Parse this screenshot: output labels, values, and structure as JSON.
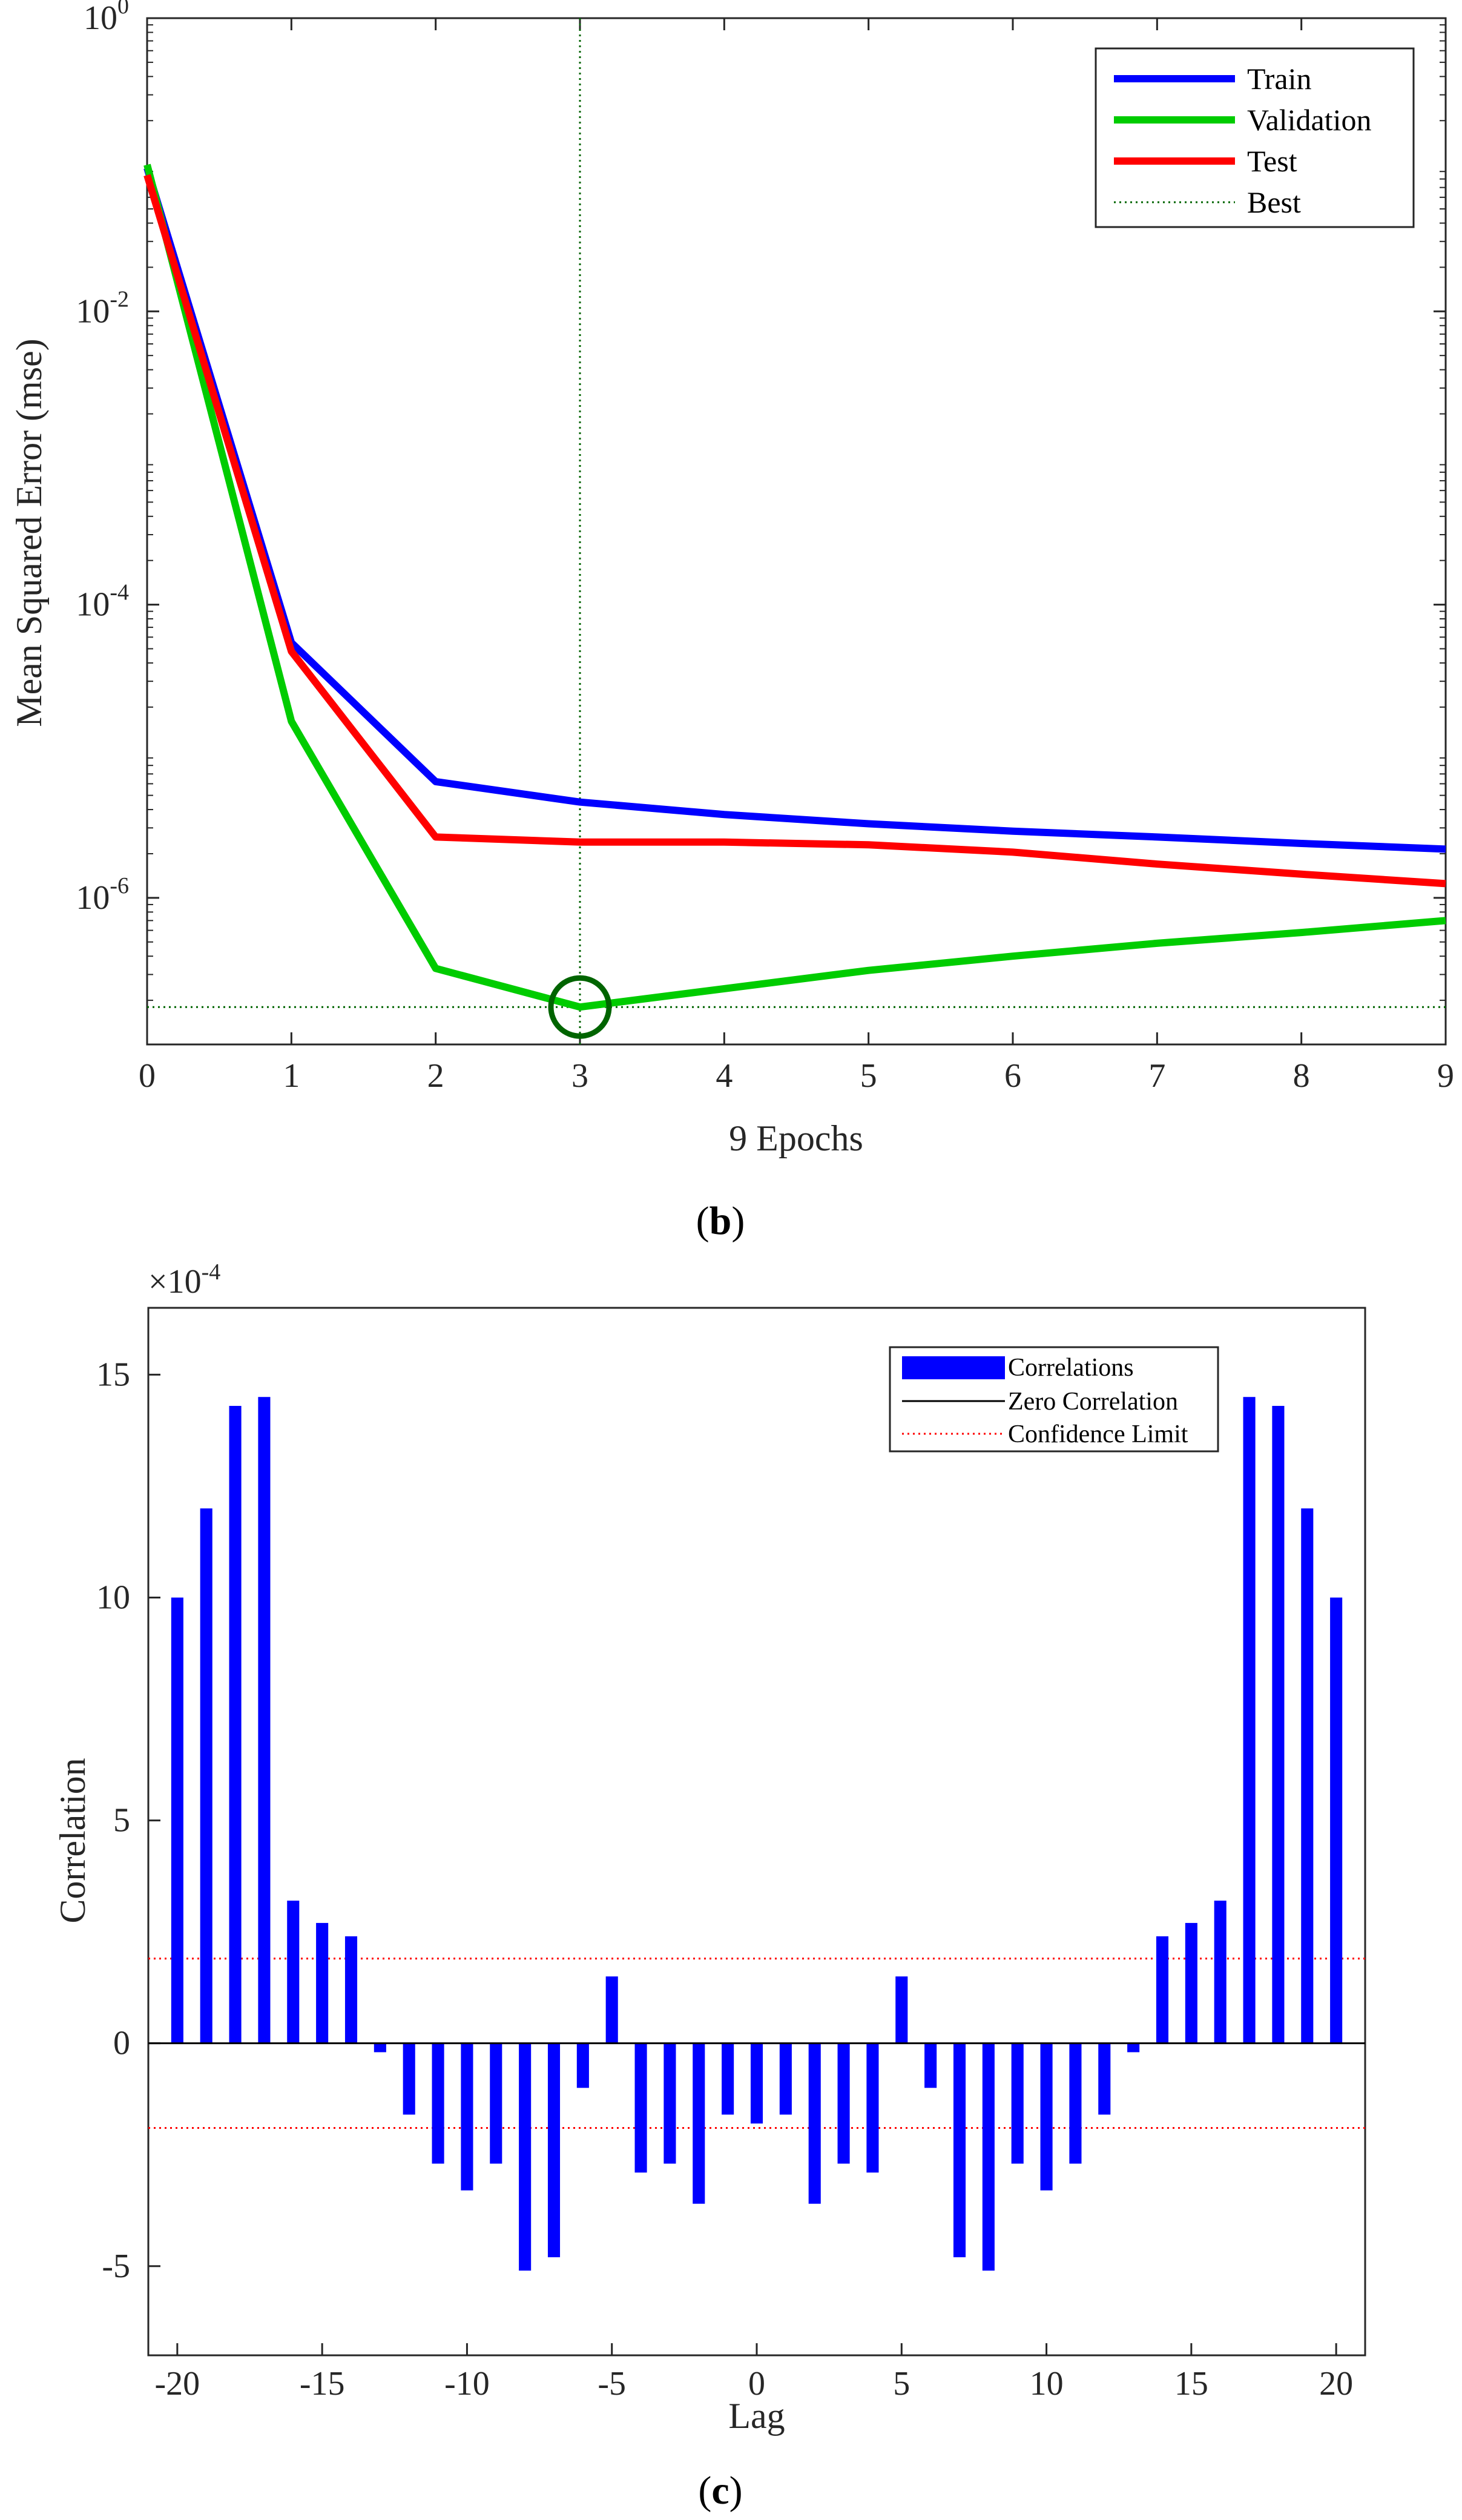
{
  "chart_data": [
    {
      "type": "line",
      "panel_label": "b",
      "yscale": "log",
      "xlabel": "9 Epochs",
      "ylabel": "Mean Squared Error  (mse)",
      "xlim": [
        0,
        9
      ],
      "ylim": [
        1e-07,
        1
      ],
      "x_ticks": [
        "0",
        "1",
        "2",
        "3",
        "4",
        "5",
        "6",
        "7",
        "8",
        "9"
      ],
      "y_ticks": [
        {
          "value": 1,
          "base": "10",
          "exp": "0"
        },
        {
          "value": 0.01,
          "base": "10",
          "exp": "-2"
        },
        {
          "value": 0.0001,
          "base": "10",
          "exp": "-4"
        },
        {
          "value": 1e-06,
          "base": "10",
          "exp": "-6"
        }
      ],
      "x": [
        0,
        1,
        2,
        3,
        4,
        5,
        6,
        7,
        8,
        9
      ],
      "series": [
        {
          "name": "Train",
          "color": "#0000ff",
          "values": [
            0.095,
            5.5e-05,
            6.2e-06,
            4.5e-06,
            3.7e-06,
            3.2e-06,
            2.85e-06,
            2.6e-06,
            2.35e-06,
            2.15e-06
          ]
        },
        {
          "name": "Validation",
          "color": "#00cc00",
          "values": [
            0.1,
            1.6e-05,
            3.3e-07,
            1.8e-07,
            2.4e-07,
            3.2e-07,
            4e-07,
            4.9e-07,
            5.8e-07,
            7e-07
          ]
        },
        {
          "name": "Test",
          "color": "#ff0000",
          "values": [
            0.085,
            4.8e-05,
            2.6e-06,
            2.4e-06,
            2.4e-06,
            2.3e-06,
            2.05e-06,
            1.7e-06,
            1.45e-06,
            1.25e-06
          ]
        }
      ],
      "best": {
        "name": "Best",
        "epoch": 3,
        "value": 1.8e-07,
        "color": "#006400"
      },
      "legend_position": "top-right"
    },
    {
      "type": "bar",
      "panel_label": "c",
      "xlabel": "Lag",
      "ylabel": "Correlation",
      "y_multiplier": {
        "prefix": "×10",
        "exp": "-4"
      },
      "xlim": [
        -21,
        21
      ],
      "ylim": [
        -7,
        16.5
      ],
      "x_ticks": [
        "-20",
        "-15",
        "-10",
        "-5",
        "0",
        "5",
        "10",
        "15",
        "20"
      ],
      "y_ticks": [
        "-5",
        "0",
        "5",
        "10",
        "15"
      ],
      "lags": [
        -20,
        -19,
        -18,
        -17,
        -16,
        -15,
        -14,
        -13,
        -12,
        -11,
        -10,
        -9,
        -8,
        -7,
        -6,
        -5,
        -4,
        -3,
        -2,
        -1,
        0,
        1,
        2,
        3,
        4,
        5,
        6,
        7,
        8,
        9,
        10,
        11,
        12,
        13,
        14,
        15,
        16,
        17,
        18,
        19,
        20
      ],
      "values": [
        10,
        12,
        14.3,
        14.5,
        3.2,
        2.7,
        2.4,
        -0.2,
        -1.6,
        -2.7,
        -3.3,
        -2.7,
        -5.1,
        -4.8,
        -1.0,
        1.5,
        -2.9,
        -2.7,
        -3.6,
        -1.6,
        -1.8,
        -1.6,
        -3.6,
        -2.7,
        -2.9,
        1.5,
        -1.0,
        -4.8,
        -5.1,
        -2.7,
        -3.3,
        -2.7,
        -1.6,
        -0.2,
        2.4,
        2.7,
        3.2,
        14.5,
        14.3,
        12,
        10
      ],
      "bar_color": "#0000ff",
      "confidence_limit": 1.9,
      "confidence_color": "#ff0000",
      "legend_position": "top-right",
      "legend": [
        "Correlations",
        "Zero Correlation",
        "Confidence Limit"
      ]
    }
  ]
}
